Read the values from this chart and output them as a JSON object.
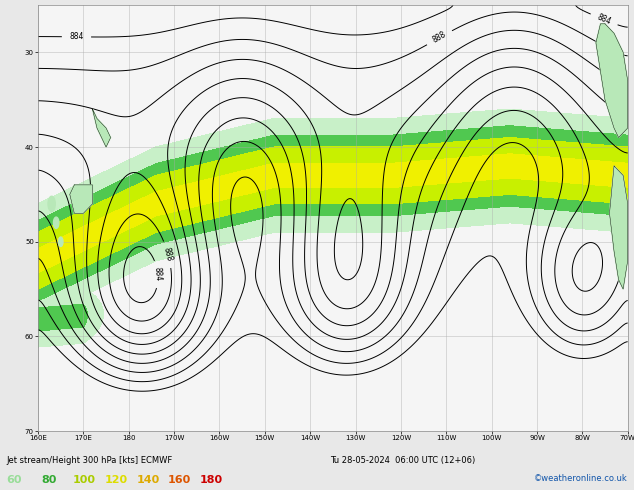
{
  "title": "Jet stream/Height 300 hPa [kts] ECMWF",
  "subtitle": "Tu 28-05-2024 06:00 UTC (12+06)",
  "watermark": "©weatheronline.co.uk",
  "legend_labels": [
    "60",
    "80",
    "100",
    "120",
    "140",
    "160",
    "180"
  ],
  "legend_text_colors": [
    "#99dd99",
    "#33aa33",
    "#aacc00",
    "#dddd00",
    "#ddaa00",
    "#dd5500",
    "#cc0000"
  ],
  "background_color": "#e8e8e8",
  "map_background": "#f5f5f5",
  "grid_color": "#aaaaaa",
  "contour_color": "#000000",
  "figsize": [
    6.34,
    4.9
  ],
  "dpi": 100,
  "bottom_label": "Jet stream/Height 300 hPa [kts] ECMWF",
  "bottom_right": "Tu 28-05-2024  06:00 UTC (12+06)",
  "fill_colors": [
    "#c8f0c8",
    "#50c850",
    "#c8f000",
    "#f0f000",
    "#f0a000",
    "#f04000",
    "#c00000"
  ],
  "fill_levels": [
    60,
    80,
    100,
    120,
    140,
    160,
    180,
    220
  ]
}
